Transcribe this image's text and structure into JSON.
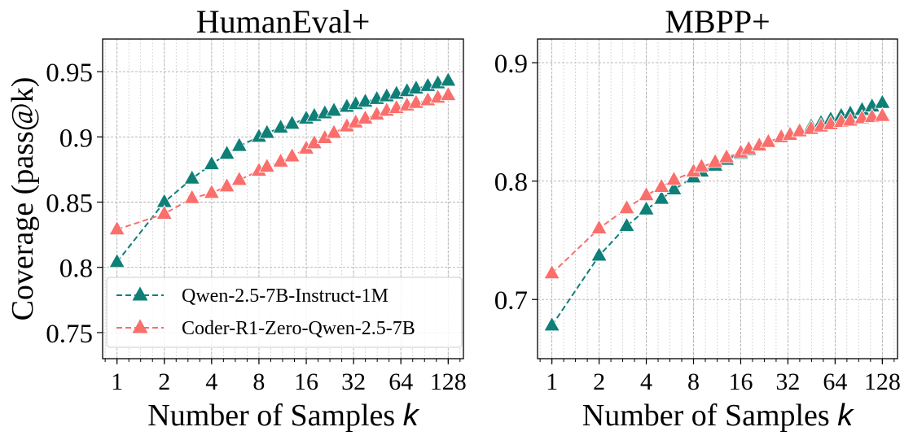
{
  "chart_data": [
    {
      "type": "line",
      "title": "HumanEval+",
      "xlabel": "Number of Samples",
      "xlabel_var": "k",
      "ylabel": "Coverage (pass@k)",
      "xscale": "log2",
      "xlim": [
        0.81,
        160
      ],
      "ylim": [
        0.73,
        0.975
      ],
      "xticks": [
        1,
        2,
        4,
        8,
        16,
        32,
        64,
        128
      ],
      "xtick_labels": [
        "1",
        "2",
        "4",
        "8",
        "16",
        "32",
        "64",
        "128"
      ],
      "yticks": [
        0.75,
        0.8,
        0.85,
        0.9,
        0.95
      ],
      "ytick_labels": [
        "0.75",
        "0.8",
        "0.85",
        "0.9",
        "0.95"
      ],
      "grid": true,
      "legend_position": "lower-left",
      "x": [
        1,
        2,
        3,
        4,
        5,
        6,
        8,
        9,
        11,
        13,
        16,
        18,
        21,
        24,
        29,
        33,
        38,
        45,
        52,
        60,
        70,
        80,
        95,
        110,
        128
      ],
      "series": [
        {
          "name": "Qwen-2.5-7B-Instruct-1M",
          "color": "#0f7f78",
          "values": [
            0.804,
            0.85,
            0.868,
            0.879,
            0.887,
            0.893,
            0.9,
            0.903,
            0.907,
            0.91,
            0.914,
            0.916,
            0.918,
            0.92,
            0.923,
            0.925,
            0.927,
            0.929,
            0.931,
            0.933,
            0.935,
            0.937,
            0.939,
            0.941,
            0.943
          ]
        },
        {
          "name": "Coder-R1-Zero-Qwen-2.5-7B",
          "color": "#fa6e6b",
          "values": [
            0.829,
            0.841,
            0.853,
            0.857,
            0.862,
            0.867,
            0.874,
            0.877,
            0.881,
            0.885,
            0.891,
            0.895,
            0.899,
            0.903,
            0.908,
            0.911,
            0.914,
            0.917,
            0.92,
            0.922,
            0.924,
            0.926,
            0.928,
            0.93,
            0.932
          ]
        }
      ]
    },
    {
      "type": "line",
      "title": "MBPP+",
      "xlabel": "Number of Samples",
      "xlabel_var": "k",
      "ylabel": "",
      "xscale": "log2",
      "xlim": [
        0.81,
        160
      ],
      "ylim": [
        0.65,
        0.92
      ],
      "xticks": [
        1,
        2,
        4,
        8,
        16,
        32,
        64,
        128
      ],
      "xtick_labels": [
        "1",
        "2",
        "4",
        "8",
        "16",
        "32",
        "64",
        "128"
      ],
      "yticks": [
        0.7,
        0.8,
        0.9
      ],
      "ytick_labels": [
        "0.7",
        "0.8",
        "0.9"
      ],
      "grid": true,
      "legend_position": "none",
      "x": [
        1,
        2,
        3,
        4,
        5,
        6,
        8,
        9,
        11,
        13,
        16,
        18,
        21,
        24,
        29,
        33,
        38,
        45,
        52,
        60,
        70,
        80,
        95,
        110,
        128
      ],
      "series": [
        {
          "name": "Qwen-2.5-7B-Instruct-1M",
          "color": "#0f7f78",
          "values": [
            0.678,
            0.737,
            0.762,
            0.776,
            0.785,
            0.793,
            0.803,
            0.808,
            0.813,
            0.818,
            0.823,
            0.826,
            0.83,
            0.833,
            0.837,
            0.84,
            0.843,
            0.846,
            0.849,
            0.852,
            0.855,
            0.857,
            0.86,
            0.863,
            0.866
          ]
        },
        {
          "name": "Coder-R1-Zero-Qwen-2.5-7B",
          "color": "#fa6e6b",
          "values": [
            0.722,
            0.76,
            0.777,
            0.788,
            0.795,
            0.801,
            0.808,
            0.812,
            0.816,
            0.82,
            0.824,
            0.827,
            0.83,
            0.833,
            0.837,
            0.839,
            0.842,
            0.844,
            0.846,
            0.848,
            0.85,
            0.851,
            0.853,
            0.854,
            0.855
          ]
        }
      ]
    }
  ]
}
